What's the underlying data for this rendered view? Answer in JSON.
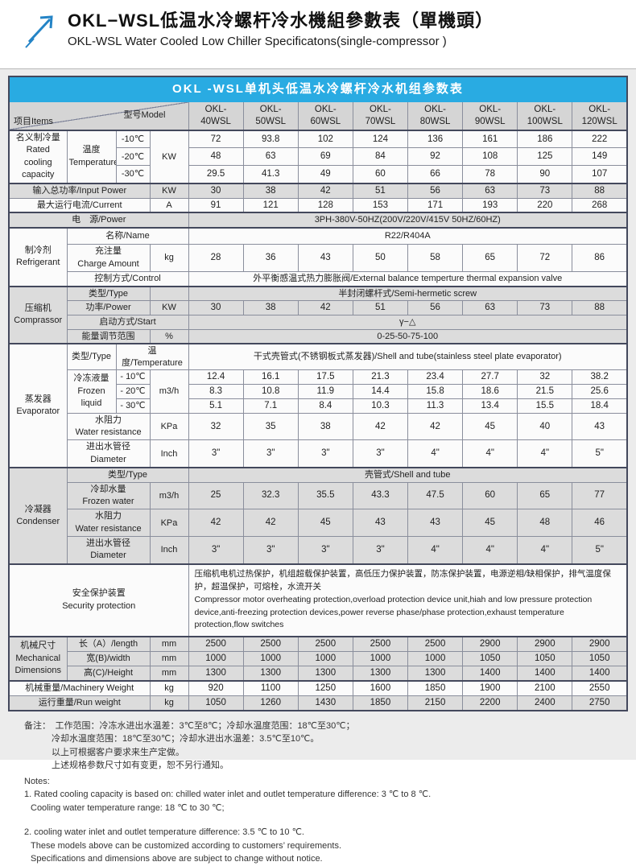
{
  "doc": {
    "title_zh": "OKL−WSL低温水冷螺杆冷水機組參數表（單機頭）",
    "title_en": "OKL-WSL Water Cooled Low Chiller Specificatons(single-compressor )"
  },
  "banner": "OKL -WSL单机头低温水冷螺杆冷水机组参数表",
  "corner": {
    "items": "项目Items",
    "model": "型号Model"
  },
  "models": [
    "OKL-\n40WSL",
    "OKL-\n50WSL",
    "OKL-\n60WSL",
    "OKL-\n70WSL",
    "OKL-\n80WSL",
    "OKL-\n90WSL",
    "OKL-\n100WSL",
    "OKL-\n120WSL"
  ],
  "cooling": {
    "section_zh": "名义制冷量",
    "section_en": "Rated cooling capacity",
    "temp_zh": "温度",
    "temp_en": "Temperature",
    "unit": "KW",
    "rows": [
      {
        "label": "-10℃",
        "values": [
          72,
          93.8,
          102,
          124,
          136,
          161,
          186,
          222
        ]
      },
      {
        "label": "-20℃",
        "values": [
          48,
          63,
          69,
          84,
          92,
          108,
          125,
          149
        ]
      },
      {
        "label": "-30℃",
        "values": [
          29.5,
          41.3,
          49,
          60,
          66,
          78,
          90,
          107
        ]
      }
    ]
  },
  "input_power": {
    "label": "输入总功率/Input Power",
    "unit": "KW",
    "values": [
      30,
      38,
      42,
      51,
      56,
      63,
      73,
      88
    ]
  },
  "current": {
    "label": "最大运行电流/Current",
    "unit": "A",
    "values": [
      91,
      121,
      128,
      153,
      171,
      193,
      220,
      268
    ]
  },
  "power_supply": {
    "label": "电　源/Power",
    "value": "3PH-380V-50HZ(200V/220V/415V  50HZ/60HZ)"
  },
  "refrigerant": {
    "section_zh": "制冷剂",
    "section_en": "Refrigerant",
    "name_label": "名称/Name",
    "name_value": "R22/R404A",
    "charge_zh": "充注量",
    "charge_en": "Charge Amount",
    "charge_unit": "kg",
    "charge_values": [
      28,
      36,
      43,
      50,
      58,
      65,
      72,
      86
    ],
    "control_label": "控制方式/Control",
    "control_value": "外平衡感温式热力膨胀阀/External balance temperture thermal expansion valve"
  },
  "compressor": {
    "section_zh": "压缩机",
    "section_en": "Comprassor",
    "type_label": "类型/Type",
    "type_value": "半封闭螺杆式/Semi-hermetic screw",
    "power_label": "功率/Power",
    "power_unit": "KW",
    "power_values": [
      30,
      38,
      42,
      51,
      56,
      63,
      73,
      88
    ],
    "start_label": "启动方式/Start",
    "start_value": "γ−△",
    "energy_label": "能量调节范围",
    "energy_unit": "%",
    "energy_value": "0-25-50-75-100"
  },
  "evaporator": {
    "section_zh": "蒸发器",
    "section_en": "Evaporator",
    "type_label": "类型/Type",
    "temp_label": "温度/Temperature",
    "type_value": "干式壳管式(不锈钢板式蒸发器)/Shell and tube(stainless steel plate evaporator)",
    "frozen_zh": "冷冻液量",
    "frozen_en": "Frozen liquid",
    "frozen_unit": "m3/h",
    "frozen_rows": [
      {
        "label": "- 10℃",
        "values": [
          12.4,
          16.1,
          17.5,
          21.3,
          23.4,
          27.7,
          32,
          38.2
        ]
      },
      {
        "label": "- 20℃",
        "values": [
          8.3,
          10.8,
          11.9,
          14.4,
          15.8,
          18.6,
          21.5,
          25.6
        ]
      },
      {
        "label": "- 30℃",
        "values": [
          5.1,
          7.1,
          8.4,
          10.3,
          11.3,
          13.4,
          15.5,
          18.4
        ]
      }
    ],
    "resistance_zh": "水阻力",
    "resistance_en": "Water resistance",
    "resistance_unit": "KPa",
    "resistance_values": [
      32,
      35,
      38,
      42,
      42,
      45,
      40,
      43
    ],
    "diameter_zh": "进出水管径",
    "diameter_en": "Diameter",
    "diameter_unit": "Inch",
    "diameter_values": [
      "3\"",
      "3\"",
      "3\"",
      "3\"",
      "4\"",
      "4\"",
      "4\"",
      "5\""
    ]
  },
  "condenser": {
    "section_zh": "冷凝器",
    "section_en": "Condenser",
    "type_label": "类型/Type",
    "type_value": "壳管式/Shell and tube",
    "water_zh": "冷却水量",
    "water_en": "Frozen water",
    "water_unit": "m3/h",
    "water_values": [
      25,
      32.3,
      35.5,
      43.3,
      47.5,
      60,
      65,
      77
    ],
    "resistance_zh": "水阻力",
    "resistance_en": "Water resistance",
    "resistance_unit": "KPa",
    "resistance_values": [
      42,
      42,
      45,
      43,
      43,
      45,
      48,
      46
    ],
    "diameter_zh": "进出水管径",
    "diameter_en": "Diameter",
    "diameter_unit": "Inch",
    "diameter_values": [
      "3\"",
      "3\"",
      "3\"",
      "3\"",
      "4\"",
      "4\"",
      "4\"",
      "5\""
    ]
  },
  "security": {
    "label_zh": "安全保护装置",
    "label_en": "Security protection",
    "text_zh": "压缩机电机过热保护，机组超载保护装置，高低压力保护装置，防冻保护装置，电源逆相/缺相保护，排气温度保护，超温保护，可熔栓，水流开关",
    "text_en": "Compressor motor overheating protection,overload protection device unit,hiah and low pressure protection device,anti-freezing protection devices,power reverse phase/phase protection,exhaust temperature protection,flow switches"
  },
  "dimensions": {
    "section_zh": "机械尺寸",
    "section_en1": "Mechanical",
    "section_en2": "Dimensions",
    "rows": [
      {
        "label": "长（A）/length",
        "unit": "mm",
        "values": [
          2500,
          2500,
          2500,
          2500,
          2500,
          2900,
          2900,
          2900
        ]
      },
      {
        "label": "宽(B)/width",
        "unit": "mm",
        "values": [
          1000,
          1000,
          1000,
          1000,
          1000,
          1050,
          1050,
          1050
        ]
      },
      {
        "label": "高(C)/Height",
        "unit": "mm",
        "values": [
          1300,
          1300,
          1300,
          1300,
          1300,
          1400,
          1400,
          1400
        ]
      }
    ]
  },
  "machinery_weight": {
    "label": "机械重量/Machinery Weight",
    "unit": "kg",
    "values": [
      920,
      1100,
      1250,
      1600,
      1850,
      1900,
      2100,
      2550
    ]
  },
  "run_weight": {
    "label": "运行重量/Run weight",
    "unit": "kg",
    "values": [
      1050,
      1260,
      1430,
      1850,
      2150,
      2200,
      2400,
      2750
    ]
  },
  "notes": {
    "zh": [
      "备注：　工作范围：冷冻水进出水温差：3℃至8℃；冷却水温度范围：18℃至30℃；",
      "冷却水温度范围：18℃至30℃；冷却水进出水温差：3.5℃至10℃。",
      "以上可根据客户要求来生产定做。",
      "上述规格参数尺寸如有变更，恕不另行通知。"
    ],
    "en": [
      "Notes:",
      "1. Rated cooling capacity is based on: chilled water inlet and outlet temperature  difference: 3 ℃ to 8 ℃.",
      "Cooling water temperature  range: 18 ℃ to 30 ℃;",
      "2. cooling water inlet and outlet temperature  difference: 3.5 ℃ to 10 ℃.",
      "These models above can be customized according to customers’   requirements.",
      "Specifications  and dimensions above are subject to change without notice."
    ]
  },
  "colors": {
    "banner_blue": "#29abe2",
    "shade_gray": "#dcdcdc",
    "logo_blue": "#2484c6"
  }
}
